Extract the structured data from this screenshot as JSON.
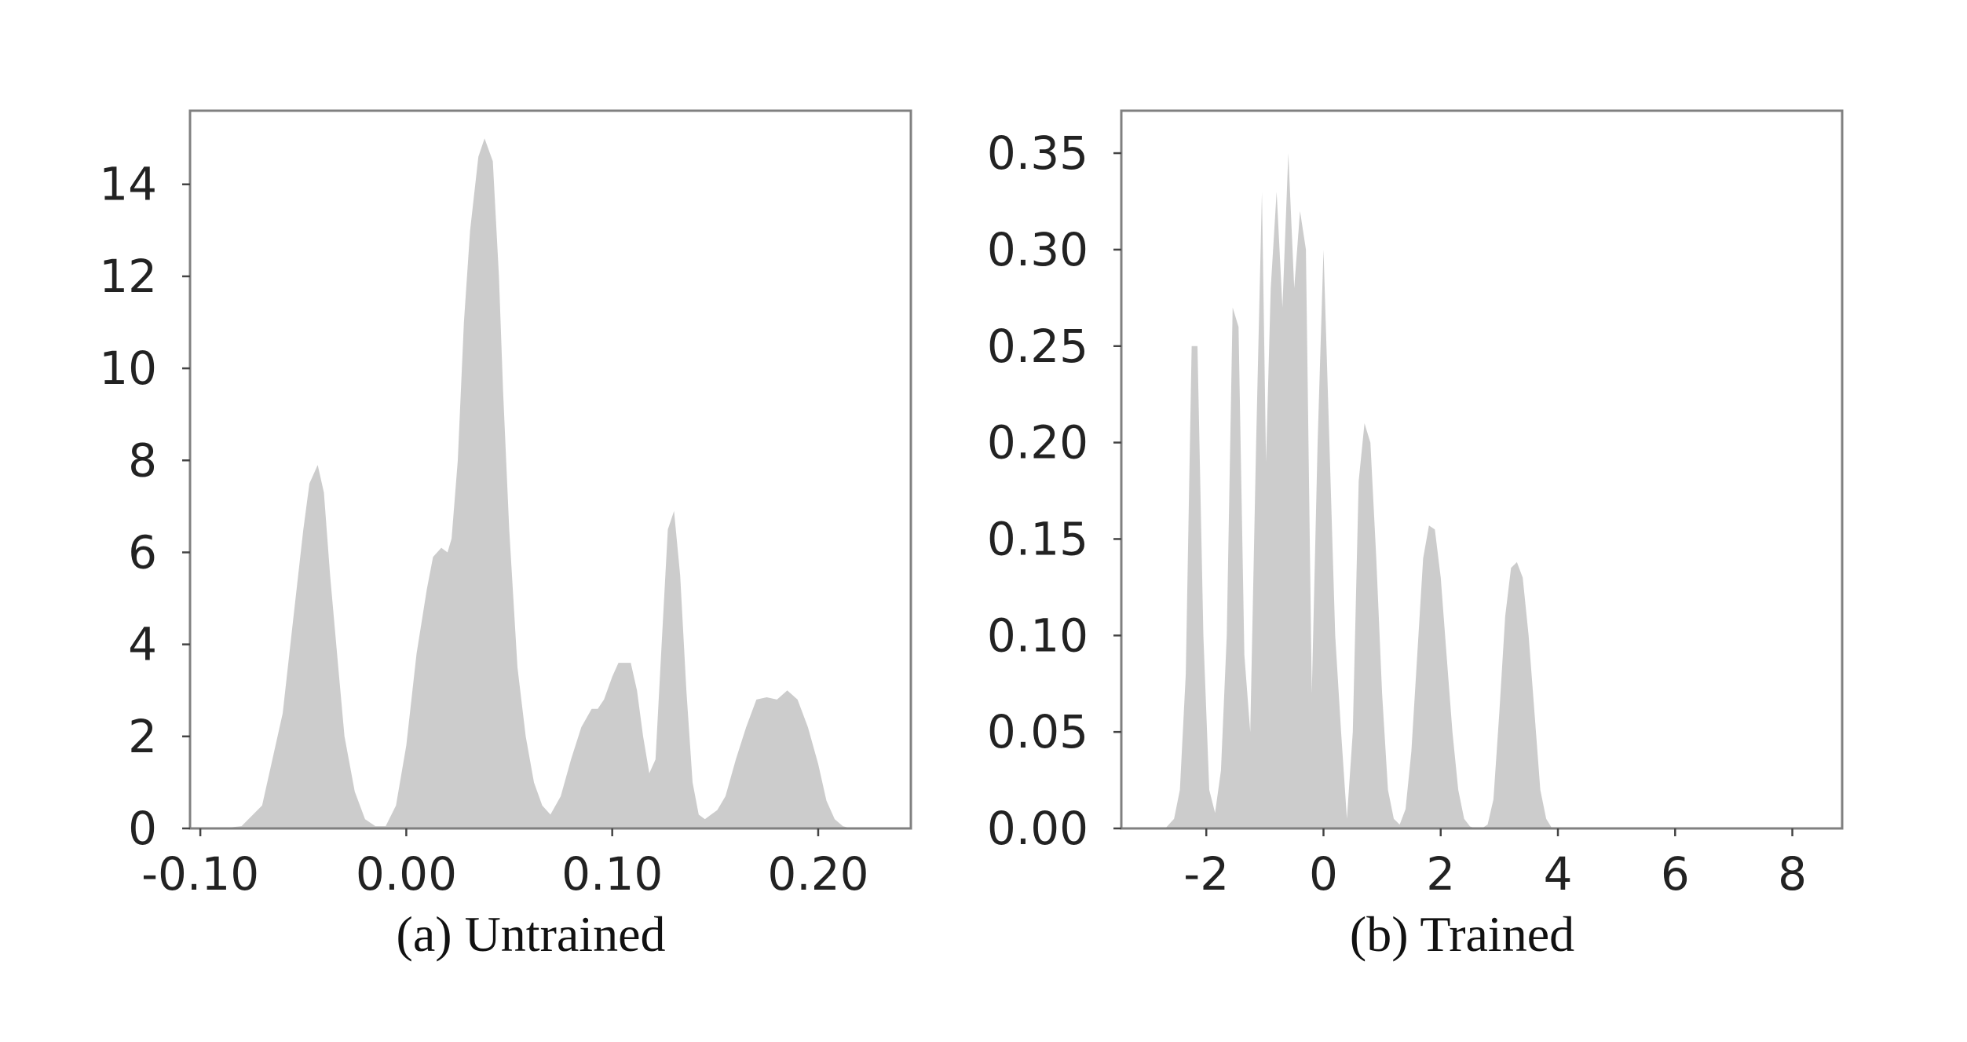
{
  "colors": {
    "fill": "#cccccc",
    "frame": "#808080",
    "text": "#222222"
  },
  "chart_data": [
    {
      "type": "area",
      "title": "",
      "caption": "(a)  Untrained",
      "xlabel": "",
      "ylabel": "",
      "xlim": [
        -0.105,
        0.245
      ],
      "ylim": [
        0,
        15.6
      ],
      "xticks": [
        -0.1,
        0.0,
        0.1,
        0.2
      ],
      "xtick_labels": [
        "-0.10",
        "0.00",
        "0.10",
        "0.20"
      ],
      "yticks": [
        0,
        2,
        4,
        6,
        8,
        10,
        12,
        14
      ],
      "ytick_labels": [
        "0",
        "2",
        "4",
        "6",
        "8",
        "10",
        "12",
        "14"
      ],
      "grid": false,
      "x": [
        -0.105,
        -0.09,
        -0.08,
        -0.07,
        -0.065,
        -0.06,
        -0.055,
        -0.05,
        -0.047,
        -0.043,
        -0.04,
        -0.037,
        -0.033,
        -0.03,
        -0.025,
        -0.02,
        -0.015,
        -0.01,
        -0.005,
        0.0,
        0.005,
        0.01,
        0.013,
        0.017,
        0.02,
        0.022,
        0.025,
        0.028,
        0.031,
        0.035,
        0.038,
        0.042,
        0.045,
        0.047,
        0.05,
        0.054,
        0.058,
        0.062,
        0.066,
        0.07,
        0.075,
        0.08,
        0.085,
        0.09,
        0.093,
        0.096,
        0.1,
        0.103,
        0.106,
        0.109,
        0.112,
        0.115,
        0.118,
        0.121,
        0.124,
        0.127,
        0.13,
        0.133,
        0.136,
        0.139,
        0.142,
        0.145,
        0.148,
        0.151,
        0.155,
        0.16,
        0.165,
        0.17,
        0.175,
        0.18,
        0.185,
        0.19,
        0.195,
        0.2,
        0.204,
        0.208,
        0.212,
        0.216,
        0.22,
        0.225,
        0.23,
        0.245
      ],
      "y": [
        0,
        0,
        0.05,
        0.5,
        1.5,
        2.5,
        4.5,
        6.5,
        7.5,
        7.9,
        7.3,
        5.5,
        3.5,
        2,
        0.8,
        0.2,
        0.05,
        0.05,
        0.5,
        1.8,
        3.8,
        5.2,
        5.9,
        6.1,
        6,
        6.3,
        8,
        11,
        13,
        14.6,
        15,
        14.5,
        12,
        9.5,
        6.5,
        3.5,
        2,
        1,
        0.5,
        0.3,
        0.7,
        1.5,
        2.2,
        2.6,
        2.6,
        2.8,
        3.3,
        3.6,
        3.6,
        3.6,
        3,
        2,
        1.2,
        1.5,
        4,
        6.5,
        6.9,
        5.5,
        3,
        1,
        0.3,
        0.2,
        0.3,
        0.4,
        0.7,
        1.5,
        2.2,
        2.8,
        2.85,
        2.8,
        3,
        2.8,
        2.2,
        1.4,
        0.6,
        0.2,
        0.05,
        0,
        0,
        0,
        0,
        0
      ]
    },
    {
      "type": "area",
      "title": "",
      "caption": "(b)  Trained",
      "xlabel": "",
      "ylabel": "",
      "xlim": [
        -3.45,
        8.85
      ],
      "ylim": [
        0,
        0.372
      ],
      "xticks": [
        -2,
        0,
        2,
        4,
        6,
        8
      ],
      "xtick_labels": [
        "-2",
        "0",
        "2",
        "4",
        "6",
        "8"
      ],
      "yticks": [
        0,
        0.05,
        0.1,
        0.15,
        0.2,
        0.25,
        0.3,
        0.35
      ],
      "ytick_labels": [
        "0.00",
        "0.05",
        "0.10",
        "0.15",
        "0.20",
        "0.25",
        "0.30",
        "0.35"
      ],
      "grid": false,
      "x": [
        -3.45,
        -2.7,
        -2.55,
        -2.45,
        -2.35,
        -2.25,
        -2.15,
        -2.05,
        -1.95,
        -1.85,
        -1.75,
        -1.65,
        -1.55,
        -1.45,
        -1.35,
        -1.25,
        -1.15,
        -1.05,
        -0.98,
        -0.9,
        -0.8,
        -0.7,
        -0.6,
        -0.5,
        -0.4,
        -0.3,
        -0.2,
        -0.1,
        0.0,
        0.1,
        0.2,
        0.3,
        0.4,
        0.5,
        0.6,
        0.7,
        0.8,
        0.9,
        1.0,
        1.1,
        1.2,
        1.3,
        1.4,
        1.5,
        1.6,
        1.7,
        1.8,
        1.9,
        2.0,
        2.1,
        2.2,
        2.3,
        2.4,
        2.5,
        2.6,
        2.7,
        2.8,
        2.9,
        3.0,
        3.1,
        3.2,
        3.3,
        3.4,
        3.5,
        3.6,
        3.7,
        3.8,
        3.9,
        4.0,
        4.1,
        4.2,
        4.3,
        4.4,
        4.5,
        4.7,
        5.0,
        6.0,
        6.4,
        6.6,
        6.8,
        6.9,
        7.0,
        7.1,
        7.2,
        7.3,
        7.4,
        7.5,
        7.6,
        7.7,
        7.9,
        8.1,
        8.85
      ],
      "y": [
        0,
        0,
        0.005,
        0.02,
        0.08,
        0.25,
        0.25,
        0.1,
        0.02,
        0.008,
        0.03,
        0.1,
        0.27,
        0.26,
        0.09,
        0.05,
        0.2,
        0.33,
        0.19,
        0.28,
        0.33,
        0.27,
        0.35,
        0.28,
        0.32,
        0.3,
        0.07,
        0.2,
        0.3,
        0.2,
        0.1,
        0.05,
        0.005,
        0.05,
        0.18,
        0.21,
        0.2,
        0.14,
        0.07,
        0.02,
        0.005,
        0.002,
        0.01,
        0.04,
        0.09,
        0.14,
        0.157,
        0.155,
        0.13,
        0.09,
        0.05,
        0.02,
        0.005,
        0.001,
        0,
        0,
        0.002,
        0.015,
        0.06,
        0.11,
        0.135,
        0.138,
        0.13,
        0.1,
        0.06,
        0.02,
        0.005,
        0,
        0,
        0,
        0,
        0,
        0,
        0,
        0,
        0,
        0,
        0,
        0,
        0,
        0,
        0,
        0,
        0,
        0,
        0,
        0,
        0,
        0,
        0,
        0,
        0
      ]
    }
  ]
}
